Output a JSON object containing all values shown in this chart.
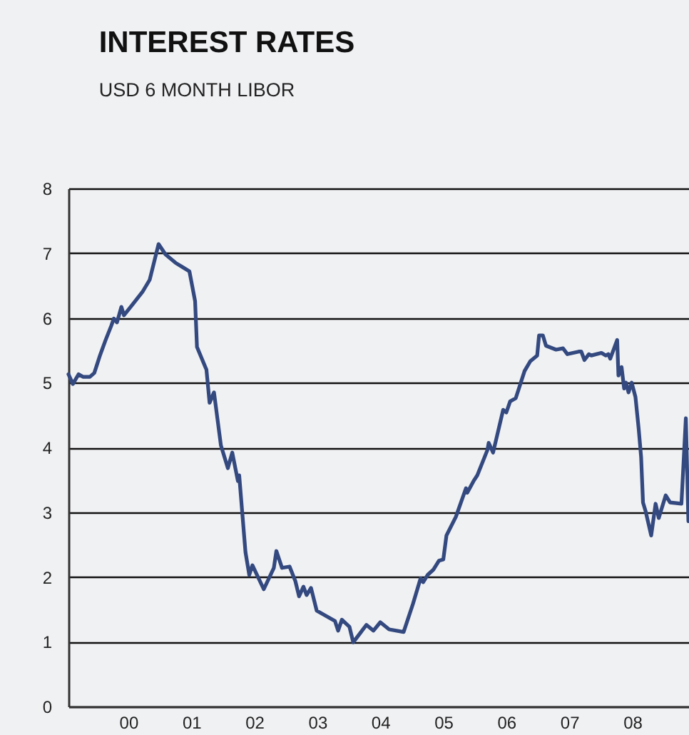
{
  "chart_data": {
    "type": "line",
    "title": "INTEREST RATES",
    "subtitle": "USD 6 MONTH LIBOR",
    "x": [
      1999.05,
      1999.12,
      1999.21,
      1999.28,
      1999.39,
      1999.46,
      1999.55,
      1999.64,
      1999.73,
      1999.77,
      1999.82,
      1999.89,
      1999.93,
      2000.07,
      2000.23,
      2000.34,
      2000.48,
      2000.59,
      2000.75,
      2000.97,
      2001.06,
      2001.09,
      2001.24,
      2001.29,
      2001.36,
      2001.47,
      2001.58,
      2001.65,
      2001.74,
      2001.76,
      2001.86,
      2001.92,
      2001.97,
      2002.15,
      2002.31,
      2002.35,
      2002.44,
      2002.56,
      2002.65,
      2002.71,
      2002.78,
      2002.83,
      2002.9,
      2002.99,
      2003.28,
      2003.33,
      2003.39,
      2003.51,
      2003.57,
      2003.78,
      2003.89,
      2004.0,
      2004.14,
      2004.37,
      2004.52,
      2004.64,
      2004.68,
      2004.75,
      2004.84,
      2004.93,
      2005.0,
      2005.05,
      2005.2,
      2005.36,
      2005.38,
      2005.48,
      2005.54,
      2005.7,
      2005.72,
      2005.79,
      2005.95,
      2006.0,
      2006.06,
      2006.15,
      2006.29,
      2006.38,
      2006.49,
      2006.52,
      2006.58,
      2006.63,
      2006.79,
      2006.9,
      2006.97,
      2007.15,
      2007.19,
      2007.24,
      2007.31,
      2007.35,
      2007.51,
      2007.58,
      2007.62,
      2007.65,
      2007.76,
      2007.78,
      2007.83,
      2007.87,
      2007.9,
      2007.94,
      2007.99,
      2008.05,
      2008.1,
      2008.14,
      2008.17,
      2008.21,
      2008.3,
      2008.37,
      2008.42,
      2008.53,
      2008.6,
      2008.78,
      2008.85,
      2008.89
    ],
    "series": [
      {
        "color": "#33497f",
        "values": [
          5.13,
          4.98,
          5.13,
          5.09,
          5.09,
          5.15,
          5.42,
          5.66,
          5.88,
          5.99,
          5.93,
          6.17,
          6.04,
          6.21,
          6.41,
          6.59,
          7.14,
          6.98,
          6.85,
          6.72,
          6.26,
          5.55,
          5.2,
          4.69,
          4.85,
          4.03,
          3.68,
          3.92,
          3.48,
          3.57,
          2.38,
          2.03,
          2.18,
          1.81,
          2.14,
          2.4,
          2.14,
          2.16,
          1.94,
          1.7,
          1.85,
          1.72,
          1.83,
          1.48,
          1.32,
          1.17,
          1.34,
          1.23,
          0.99,
          1.26,
          1.17,
          1.3,
          1.19,
          1.15,
          1.59,
          1.98,
          1.92,
          2.03,
          2.11,
          2.25,
          2.27,
          2.64,
          2.93,
          3.37,
          3.3,
          3.48,
          3.57,
          3.96,
          4.07,
          3.92,
          4.58,
          4.54,
          4.71,
          4.76,
          5.18,
          5.33,
          5.42,
          5.73,
          5.73,
          5.57,
          5.51,
          5.53,
          5.44,
          5.48,
          5.48,
          5.35,
          5.44,
          5.42,
          5.46,
          5.42,
          5.44,
          5.37,
          5.66,
          5.11,
          5.24,
          4.91,
          5.0,
          4.85,
          5.0,
          4.78,
          4.3,
          3.85,
          3.15,
          3.02,
          2.64,
          3.13,
          2.91,
          3.26,
          3.15,
          3.13,
          4.45,
          2.86
        ]
      }
    ],
    "xlim": [
      1999.05,
      2008.9
    ],
    "xticks": [
      {
        "value": 2000,
        "label": "00"
      },
      {
        "value": 2001,
        "label": "01"
      },
      {
        "value": 2002,
        "label": "02"
      },
      {
        "value": 2003,
        "label": "03"
      },
      {
        "value": 2004,
        "label": "04"
      },
      {
        "value": 2005,
        "label": "05"
      },
      {
        "value": 2006,
        "label": "06"
      },
      {
        "value": 2007,
        "label": "07"
      },
      {
        "value": 2008,
        "label": "08"
      }
    ],
    "ylim": [
      0,
      8
    ],
    "yticks": [
      0,
      1,
      2,
      3,
      4,
      5,
      6,
      7,
      8
    ],
    "grid": "y",
    "marker": "none",
    "line_style": "solid"
  }
}
